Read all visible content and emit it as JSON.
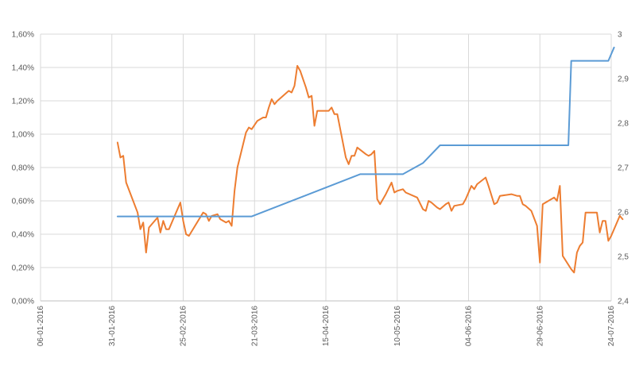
{
  "chart_data": {
    "type": "line",
    "grid": true,
    "legend": "none",
    "x_axis": {
      "type": "date",
      "min": "2016-01-06",
      "max": "2016-07-24",
      "ticks": [
        "2016-01-06",
        "2016-01-31",
        "2016-02-25",
        "2016-03-21",
        "2016-04-15",
        "2016-05-10",
        "2016-06-04",
        "2016-06-29",
        "2016-07-24"
      ],
      "tick_labels": [
        "06-01-2016",
        "31-01-2016",
        "25-02-2016",
        "21-03-2016",
        "15-04-2016",
        "10-05-2016",
        "04-06-2016",
        "29-06-2016",
        "24-07-2016"
      ]
    },
    "y_left": {
      "min": 0,
      "max": 0.016,
      "ticks": [
        0,
        0.002,
        0.004,
        0.006,
        0.008,
        0.01,
        0.012,
        0.014,
        0.016
      ],
      "tick_labels": [
        "0,00%",
        "0,20%",
        "0,40%",
        "0,60%",
        "0,80%",
        "1,00%",
        "1,20%",
        "1,40%",
        "1,60%"
      ]
    },
    "y_right": {
      "min": 2.4,
      "max": 3.0,
      "ticks": [
        2.4,
        2.5,
        2.6,
        2.7,
        2.8,
        2.9,
        3.0
      ],
      "tick_labels": [
        "2,4",
        "2,5",
        "2,6",
        "2,7",
        "2,8",
        "2,9",
        "3"
      ]
    },
    "series": [
      {
        "axis": "left",
        "color": "#ed7d31",
        "points": [
          [
            "2016-02-02",
            0.0095
          ],
          [
            "2016-02-03",
            0.0086
          ],
          [
            "2016-02-04",
            0.0087
          ],
          [
            "2016-02-05",
            0.0071
          ],
          [
            "2016-02-09",
            0.0053
          ],
          [
            "2016-02-10",
            0.0043
          ],
          [
            "2016-02-11",
            0.0047
          ],
          [
            "2016-02-12",
            0.0029
          ],
          [
            "2016-02-13",
            0.0044
          ],
          [
            "2016-02-16",
            0.005
          ],
          [
            "2016-02-17",
            0.0041
          ],
          [
            "2016-02-18",
            0.0048
          ],
          [
            "2016-02-19",
            0.0043
          ],
          [
            "2016-02-20",
            0.0043
          ],
          [
            "2016-02-24",
            0.0059
          ],
          [
            "2016-02-25",
            0.0048
          ],
          [
            "2016-02-26",
            0.004
          ],
          [
            "2016-02-27",
            0.0039
          ],
          [
            "2016-03-03",
            0.0053
          ],
          [
            "2016-03-04",
            0.0052
          ],
          [
            "2016-03-05",
            0.0048
          ],
          [
            "2016-03-06",
            0.0051
          ],
          [
            "2016-03-08",
            0.0052
          ],
          [
            "2016-03-09",
            0.0049
          ],
          [
            "2016-03-11",
            0.0047
          ],
          [
            "2016-03-12",
            0.0048
          ],
          [
            "2016-03-13",
            0.0045
          ],
          [
            "2016-03-14",
            0.0066
          ],
          [
            "2016-03-15",
            0.008
          ],
          [
            "2016-03-18",
            0.0101
          ],
          [
            "2016-03-19",
            0.0104
          ],
          [
            "2016-03-20",
            0.0103
          ],
          [
            "2016-03-22",
            0.0108
          ],
          [
            "2016-03-24",
            0.011
          ],
          [
            "2016-03-25",
            0.011
          ],
          [
            "2016-03-26",
            0.0116
          ],
          [
            "2016-03-27",
            0.0121
          ],
          [
            "2016-03-28",
            0.0118
          ],
          [
            "2016-03-29",
            0.012
          ],
          [
            "2016-04-02",
            0.0126
          ],
          [
            "2016-04-03",
            0.0125
          ],
          [
            "2016-04-04",
            0.0129
          ],
          [
            "2016-04-05",
            0.0141
          ],
          [
            "2016-04-06",
            0.0138
          ],
          [
            "2016-04-08",
            0.0128
          ],
          [
            "2016-04-09",
            0.0122
          ],
          [
            "2016-04-10",
            0.0123
          ],
          [
            "2016-04-11",
            0.0105
          ],
          [
            "2016-04-12",
            0.0114
          ],
          [
            "2016-04-16",
            0.0114
          ],
          [
            "2016-04-17",
            0.0116
          ],
          [
            "2016-04-18",
            0.0112
          ],
          [
            "2016-04-19",
            0.0112
          ],
          [
            "2016-04-22",
            0.0086
          ],
          [
            "2016-04-23",
            0.0082
          ],
          [
            "2016-04-24",
            0.0087
          ],
          [
            "2016-04-25",
            0.0087
          ],
          [
            "2016-04-26",
            0.0092
          ],
          [
            "2016-04-29",
            0.0088
          ],
          [
            "2016-04-30",
            0.0087
          ],
          [
            "2016-05-01",
            0.0088
          ],
          [
            "2016-05-02",
            0.009
          ],
          [
            "2016-05-03",
            0.0061
          ],
          [
            "2016-05-04",
            0.0058
          ],
          [
            "2016-05-06",
            0.0064
          ],
          [
            "2016-05-08",
            0.0071
          ],
          [
            "2016-05-09",
            0.0065
          ],
          [
            "2016-05-10",
            0.0066
          ],
          [
            "2016-05-12",
            0.0067
          ],
          [
            "2016-05-13",
            0.0065
          ],
          [
            "2016-05-17",
            0.0062
          ],
          [
            "2016-05-19",
            0.0055
          ],
          [
            "2016-05-20",
            0.0054
          ],
          [
            "2016-05-21",
            0.006
          ],
          [
            "2016-05-22",
            0.0059
          ],
          [
            "2016-05-24",
            0.0056
          ],
          [
            "2016-05-25",
            0.0055
          ],
          [
            "2016-05-27",
            0.0058
          ],
          [
            "2016-05-28",
            0.0059
          ],
          [
            "2016-05-29",
            0.0054
          ],
          [
            "2016-05-30",
            0.0057
          ],
          [
            "2016-06-02",
            0.0058
          ],
          [
            "2016-06-03",
            0.0061
          ],
          [
            "2016-06-04",
            0.0065
          ],
          [
            "2016-06-05",
            0.0069
          ],
          [
            "2016-06-06",
            0.0067
          ],
          [
            "2016-06-07",
            0.007
          ],
          [
            "2016-06-10",
            0.0074
          ],
          [
            "2016-06-11",
            0.0069
          ],
          [
            "2016-06-13",
            0.0058
          ],
          [
            "2016-06-14",
            0.0059
          ],
          [
            "2016-06-15",
            0.0063
          ],
          [
            "2016-06-19",
            0.0064
          ],
          [
            "2016-06-21",
            0.0063
          ],
          [
            "2016-06-22",
            0.0063
          ],
          [
            "2016-06-23",
            0.0058
          ],
          [
            "2016-06-24",
            0.0057
          ],
          [
            "2016-06-26",
            0.0054
          ],
          [
            "2016-06-28",
            0.0045
          ],
          [
            "2016-06-29",
            0.0023
          ],
          [
            "2016-06-30",
            0.0058
          ],
          [
            "2016-07-01",
            0.0059
          ],
          [
            "2016-07-03",
            0.0061
          ],
          [
            "2016-07-04",
            0.0062
          ],
          [
            "2016-07-05",
            0.006
          ],
          [
            "2016-07-06",
            0.0069
          ],
          [
            "2016-07-07",
            0.0027
          ],
          [
            "2016-07-10",
            0.0019
          ],
          [
            "2016-07-11",
            0.0017
          ],
          [
            "2016-07-12",
            0.0029
          ],
          [
            "2016-07-13",
            0.0033
          ],
          [
            "2016-07-14",
            0.0035
          ],
          [
            "2016-07-15",
            0.0053
          ],
          [
            "2016-07-19",
            0.0053
          ],
          [
            "2016-07-20",
            0.0041
          ],
          [
            "2016-07-21",
            0.0048
          ],
          [
            "2016-07-22",
            0.0048
          ],
          [
            "2016-07-23",
            0.0036
          ],
          [
            "2016-07-24",
            0.0039
          ],
          [
            "2016-07-27",
            0.0051
          ],
          [
            "2016-07-28",
            0.0049
          ]
        ]
      },
      {
        "axis": "right",
        "color": "#5b9bd5",
        "points": [
          [
            "2016-02-02",
            2.59
          ],
          [
            "2016-03-20",
            2.59
          ],
          [
            "2016-04-07",
            2.635
          ],
          [
            "2016-04-27",
            2.685
          ],
          [
            "2016-05-12",
            2.685
          ],
          [
            "2016-05-19",
            2.71
          ],
          [
            "2016-05-25",
            2.75
          ],
          [
            "2016-07-09",
            2.75
          ],
          [
            "2016-07-10",
            2.94
          ],
          [
            "2016-07-23",
            2.94
          ],
          [
            "2016-07-25",
            2.97
          ]
        ]
      }
    ]
  }
}
